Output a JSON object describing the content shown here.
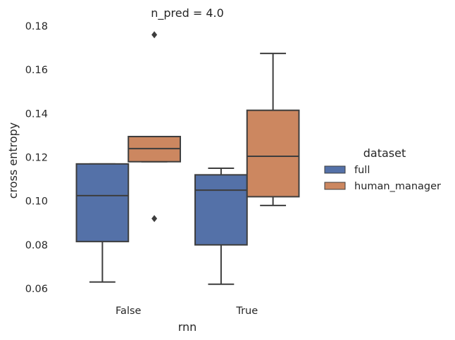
{
  "chart_data": {
    "type": "box",
    "title": "n_pred = 4.0",
    "xlabel": "rnn",
    "ylabel": "cross entropy",
    "ylim": [
      0.055,
      0.18
    ],
    "yticks": [
      0.06,
      0.08,
      0.1,
      0.12,
      0.14,
      0.16,
      0.18
    ],
    "ytick_labels": [
      "0.06",
      "0.08",
      "0.10",
      "0.12",
      "0.14",
      "0.16",
      "0.18"
    ],
    "categories": [
      "False",
      "True"
    ],
    "legend": {
      "title": "dataset",
      "position": "right"
    },
    "grid": false,
    "series": [
      {
        "name": "full",
        "color": "#5471a8",
        "boxes": [
          {
            "whisker_low": 0.063,
            "q1": 0.0815,
            "median": 0.1025,
            "q3": 0.117,
            "whisker_high": 0.117,
            "outliers": []
          },
          {
            "whisker_low": 0.062,
            "q1": 0.08,
            "median": 0.105,
            "q3": 0.112,
            "whisker_high": 0.115,
            "outliers": []
          }
        ]
      },
      {
        "name": "human_manager",
        "color": "#cc8760",
        "boxes": [
          {
            "whisker_low": 0.118,
            "q1": 0.118,
            "median": 0.124,
            "q3": 0.1295,
            "whisker_high": 0.1295,
            "outliers": [
              0.092,
              0.176
            ]
          },
          {
            "whisker_low": 0.098,
            "q1": 0.102,
            "median": 0.1205,
            "q3": 0.1415,
            "whisker_high": 0.1675,
            "outliers": []
          }
        ]
      }
    ]
  }
}
